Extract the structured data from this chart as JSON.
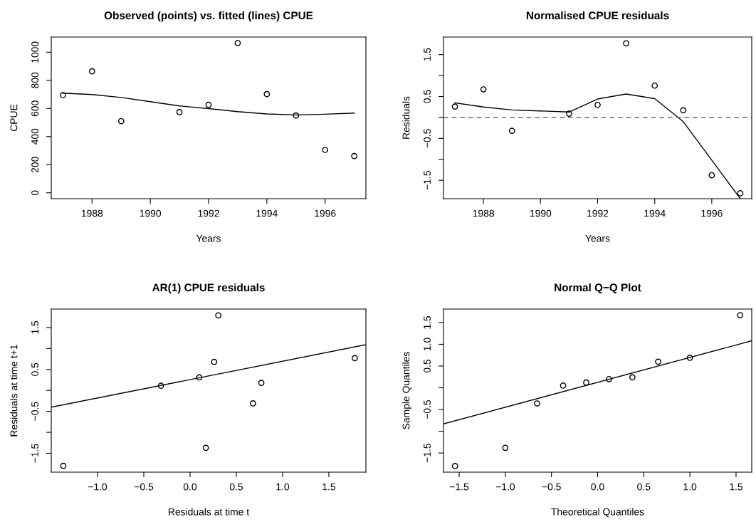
{
  "chart_data": [
    {
      "type": "scatter",
      "title": "Observed (points) vs. fitted (lines) CPUE",
      "xlabel": "Years",
      "ylabel": "CPUE",
      "xlim": [
        1986.6,
        1997.4
      ],
      "ylim": [
        -42,
        1108
      ],
      "xticks": [
        1988,
        1990,
        1992,
        1994,
        1996
      ],
      "yticks": [
        0,
        200,
        400,
        600,
        800,
        1000
      ],
      "grid": false,
      "legend": false,
      "series": [
        {
          "type": "scatter",
          "marker": "circle",
          "color": "#000000",
          "x": [
            1987,
            1988,
            1989,
            1991,
            1992,
            1993,
            1994,
            1995,
            1996,
            1997
          ],
          "values": [
            695,
            864,
            510,
            574,
            626,
            1066,
            702,
            550,
            305,
            261
          ]
        },
        {
          "type": "line",
          "marker": "none",
          "line_style": "solid",
          "color": "#000000",
          "x": [
            1987,
            1988,
            1989,
            1990,
            1991,
            1992,
            1993,
            1994,
            1995,
            1996,
            1997
          ],
          "values": [
            709,
            699,
            678,
            648,
            618,
            599,
            577,
            561,
            554,
            559,
            567
          ]
        }
      ]
    },
    {
      "type": "scatter",
      "title": "Normalised CPUE residuals",
      "xlabel": "Years",
      "ylabel": "Residuals",
      "xlim": [
        1986.6,
        1997.4
      ],
      "ylim": [
        -1.94,
        1.92
      ],
      "xticks": [
        1988,
        1990,
        1992,
        1994,
        1996
      ],
      "yticks": [
        {
          "value": -1.5,
          "label": "−1.5"
        },
        {
          "value": -1,
          "label": null
        },
        {
          "value": -0.5,
          "label": "−0.5"
        },
        {
          "value": 0,
          "label": null
        },
        {
          "value": 0.5,
          "label": "0.5"
        },
        {
          "value": 1,
          "label": null
        },
        {
          "value": 1.5,
          "label": "1.5"
        }
      ],
      "grid": false,
      "legend": false,
      "ref_lines": [
        {
          "axis": "y",
          "value": 0,
          "label": null,
          "color": "#808080",
          "line_style": "dashed"
        }
      ],
      "series": [
        {
          "type": "scatter",
          "marker": "circle",
          "color": "#000000",
          "x": [
            1987,
            1988,
            1989,
            1991,
            1992,
            1993,
            1994,
            1995,
            1996,
            1997
          ],
          "values": [
            0.26,
            0.67,
            -0.32,
            0.09,
            0.3,
            1.77,
            0.76,
            0.17,
            -1.38,
            -1.81
          ]
        },
        {
          "type": "line",
          "marker": "none",
          "line_style": "solid",
          "color": "#000000",
          "x": [
            1987,
            1988,
            1989,
            1991,
            1992,
            1993,
            1994,
            1995,
            1996,
            1997
          ],
          "values": [
            0.35,
            0.25,
            0.18,
            0.13,
            0.44,
            0.56,
            0.45,
            -0.1,
            -1.02,
            -1.94
          ]
        }
      ]
    },
    {
      "type": "scatter",
      "title": "AR(1) CPUE residuals",
      "xlabel": "Residuals at time t",
      "ylabel": "Residuals at time t+1",
      "xlim": [
        -1.5,
        1.9
      ],
      "ylim": [
        -1.95,
        1.94
      ],
      "xticks": [
        {
          "value": -1,
          "label": "−1.0"
        },
        {
          "value": -0.5,
          "label": "−0.5"
        },
        {
          "value": 0,
          "label": "0.0"
        },
        {
          "value": 0.5,
          "label": "0.5"
        },
        {
          "value": 1,
          "label": "1.0"
        },
        {
          "value": 1.5,
          "label": "1.5"
        }
      ],
      "yticks": [
        {
          "value": -1.5,
          "label": "−1.5"
        },
        {
          "value": -1,
          "label": null
        },
        {
          "value": -0.5,
          "label": "−0.5"
        },
        {
          "value": 0,
          "label": null
        },
        {
          "value": 0.5,
          "label": "0.5"
        },
        {
          "value": 1,
          "label": null
        },
        {
          "value": 1.5,
          "label": "1.5"
        }
      ],
      "grid": false,
      "legend": false,
      "series": [
        {
          "type": "scatter",
          "marker": "circle",
          "color": "#000000",
          "x": [
            -1.37,
            -0.315,
            0.1,
            0.26,
            0.305,
            0.17,
            0.68,
            0.77,
            1.78
          ],
          "values": [
            -1.8,
            0.11,
            0.31,
            0.68,
            1.79,
            -1.37,
            -0.31,
            0.18,
            0.77
          ]
        },
        {
          "type": "line",
          "marker": "none",
          "line_style": "solid",
          "color": "#000000",
          "x": [
            -1.5,
            1.9
          ],
          "values": [
            -0.4,
            1.09
          ]
        }
      ]
    },
    {
      "type": "scatter",
      "title": "Normal Q−Q Plot",
      "xlabel": "Theoretical Quantiles",
      "ylabel": "Sample Quantiles",
      "xlim": [
        -1.67,
        1.67
      ],
      "ylim": [
        -1.94,
        1.81
      ],
      "xticks": [
        {
          "value": -1.5,
          "label": "−1.5"
        },
        {
          "value": -1,
          "label": "−1.0"
        },
        {
          "value": -0.5,
          "label": "−0.5"
        },
        {
          "value": 0,
          "label": "0.0"
        },
        {
          "value": 0.5,
          "label": "0.5"
        },
        {
          "value": 1,
          "label": "1.0"
        },
        {
          "value": 1.5,
          "label": "1.5"
        }
      ],
      "yticks": [
        {
          "value": -1.5,
          "label": "−1.5"
        },
        {
          "value": -1,
          "label": null
        },
        {
          "value": -0.5,
          "label": "−0.5"
        },
        {
          "value": 0,
          "label": null
        },
        {
          "value": 0.5,
          "label": "0.5"
        },
        {
          "value": 1,
          "label": "1.0"
        },
        {
          "value": 1.5,
          "label": "1.5"
        }
      ],
      "grid": false,
      "legend": false,
      "series": [
        {
          "type": "scatter",
          "marker": "circle",
          "color": "#000000",
          "x": [
            -1.545,
            -1.0,
            -0.656,
            -0.374,
            -0.123,
            0.123,
            0.377,
            0.656,
            1.0,
            1.545
          ],
          "values": [
            -1.8,
            -1.38,
            -0.36,
            0.05,
            0.12,
            0.2,
            0.24,
            0.6,
            0.69,
            1.67
          ]
        },
        {
          "type": "line",
          "marker": "none",
          "line_style": "solid",
          "color": "#000000",
          "x": [
            -1.67,
            1.67
          ],
          "values": [
            -0.83,
            1.08
          ]
        }
      ]
    }
  ]
}
